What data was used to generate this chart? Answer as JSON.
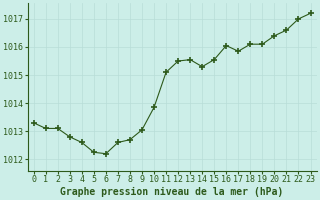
{
  "x": [
    0,
    1,
    2,
    3,
    4,
    5,
    6,
    7,
    8,
    9,
    10,
    11,
    12,
    13,
    14,
    15,
    16,
    17,
    18,
    19,
    20,
    21,
    22,
    23
  ],
  "y": [
    1013.3,
    1013.1,
    1013.1,
    1012.8,
    1012.6,
    1012.25,
    1012.2,
    1012.6,
    1012.7,
    1013.05,
    1013.85,
    1015.1,
    1015.5,
    1015.55,
    1015.3,
    1015.55,
    1016.05,
    1015.85,
    1016.1,
    1016.1,
    1016.4,
    1016.6,
    1017.0,
    1017.2
  ],
  "bg_color": "#cceee8",
  "line_color": "#2d5a1b",
  "marker_color": "#2d5a1b",
  "grid_color": "#b8ddd8",
  "title": "Graphe pression niveau de la mer (hPa)",
  "ylabel_vals": [
    1012,
    1013,
    1014,
    1015,
    1016,
    1017
  ],
  "ylim": [
    1011.6,
    1017.55
  ],
  "xlim": [
    -0.5,
    23.5
  ],
  "xlabel_vals": [
    0,
    1,
    2,
    3,
    4,
    5,
    6,
    7,
    8,
    9,
    10,
    11,
    12,
    13,
    14,
    15,
    16,
    17,
    18,
    19,
    20,
    21,
    22,
    23
  ],
  "font_color": "#2d5a1b",
  "title_fontsize": 7.0,
  "tick_fontsize": 6.0,
  "axis_bg": "#cceee8"
}
